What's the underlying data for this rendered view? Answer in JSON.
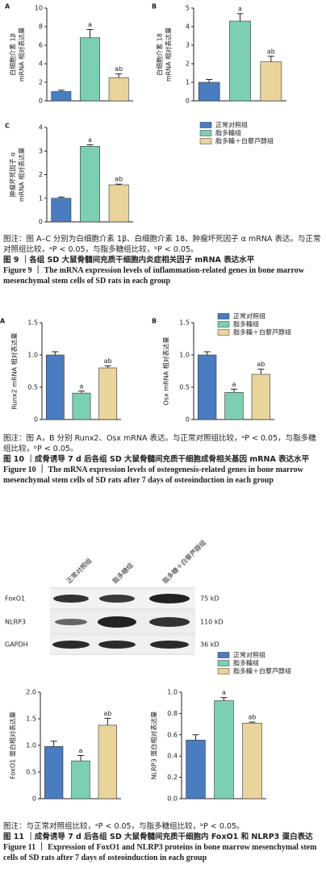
{
  "chart_data": [
    {
      "type": "bar",
      "panel": "A",
      "ylabel": [
        "白细胞介素 1β",
        "mRNA 相对表达量"
      ],
      "categories": [
        "正常对照组",
        "脂多糖组",
        "脂多糖＋白藜芦醇组"
      ],
      "colors": [
        "#4a7cc0",
        "#7dcfb3",
        "#e9d49c"
      ],
      "values": [
        1.0,
        6.8,
        2.5
      ],
      "errors": [
        0.15,
        0.9,
        0.4
      ],
      "annotations": [
        null,
        "a",
        "ab"
      ],
      "ylim": [
        0,
        10
      ],
      "yticks": [
        0,
        2,
        4,
        6,
        8,
        10
      ],
      "legend": false
    },
    {
      "type": "bar",
      "panel": "B",
      "ylabel": [
        "白细胞介素 18",
        "mRNA 相对表达量"
      ],
      "categories": [
        "正常对照组",
        "脂多糖组",
        "脂多糖＋白藜芦醇组"
      ],
      "colors": [
        "#4a7cc0",
        "#7dcfb3",
        "#e9d49c"
      ],
      "values": [
        1.0,
        4.3,
        2.1
      ],
      "errors": [
        0.15,
        0.4,
        0.3
      ],
      "annotations": [
        null,
        "a",
        "ab"
      ],
      "ylim": [
        0,
        5
      ],
      "yticks": [
        0,
        1,
        2,
        3,
        4,
        5
      ],
      "legend": false
    },
    {
      "type": "bar",
      "panel": "C",
      "ylabel": [
        "肿瘤坏死因子 α",
        "mRNA 相对表达量"
      ],
      "categories": [
        "正常对照组",
        "脂多糖组",
        "脂多糖＋白藜芦醇组"
      ],
      "colors": [
        "#4a7cc0",
        "#7dcfb3",
        "#e9d49c"
      ],
      "values": [
        1.0,
        3.2,
        1.57
      ],
      "errors": [
        0.05,
        0.07,
        0.03
      ],
      "annotations": [
        null,
        "a",
        "ab"
      ],
      "ylim": [
        0,
        4
      ],
      "yticks": [
        0,
        1,
        2,
        3,
        4
      ],
      "legend": true
    },
    {
      "type": "bar",
      "panel": "A",
      "ylabel": [
        "Runx2 mRNA 相对表达量"
      ],
      "categories": [
        "正常对照组",
        "脂多糖组",
        "脂多糖＋白藜芦醇组"
      ],
      "colors": [
        "#4a7cc0",
        "#7dcfb3",
        "#e9d49c"
      ],
      "values": [
        1.0,
        0.41,
        0.8
      ],
      "errors": [
        0.05,
        0.03,
        0.03
      ],
      "annotations": [
        null,
        "a",
        "ab"
      ],
      "ylim": [
        0,
        1.5
      ],
      "yticks": [
        0,
        0.5,
        {
          "value": 1,
          "label": "1.0"
        },
        1.5
      ],
      "legend": true
    },
    {
      "type": "bar",
      "panel": "B",
      "ylabel": [
        "Osx mRNA 相对表达量"
      ],
      "categories": [
        "正常对照组",
        "脂多糖组",
        "脂多糖＋白藜芦醇组"
      ],
      "colors": [
        "#4a7cc0",
        "#7dcfb3",
        "#e9d49c"
      ],
      "values": [
        1.0,
        0.42,
        0.7
      ],
      "errors": [
        0.05,
        0.05,
        0.08
      ],
      "annotations": [
        null,
        "a",
        "ab"
      ],
      "ylim": [
        0,
        1.5
      ],
      "yticks": [
        0,
        0.5,
        {
          "value": 1,
          "label": "1.0"
        },
        1.5
      ],
      "legend": false
    },
    {
      "type": "bar",
      "ylabel": [
        "FoxO1 蛋白相对表达量"
      ],
      "categories": [
        "正常对照组",
        "脂多糖组",
        "脂多糖＋白藜芦醇组"
      ],
      "colors": [
        "#4a7cc0",
        "#7dcfb3",
        "#e9d49c"
      ],
      "values": [
        0.98,
        0.71,
        1.38
      ],
      "errors": [
        0.1,
        0.1,
        0.13
      ],
      "annotations": [
        null,
        "a",
        "ab"
      ],
      "ylim": [
        0,
        2
      ],
      "yticks": [
        0,
        0.5,
        {
          "value": 1,
          "label": "1.0"
        },
        1.5,
        {
          "value": 2,
          "label": "2.0"
        }
      ],
      "legend": false
    },
    {
      "type": "bar",
      "ylabel": [
        "NLRP3 蛋白相对表达量"
      ],
      "categories": [
        "正常对照组",
        "脂多糖组",
        "脂多糖＋白藜芦醇组"
      ],
      "colors": [
        "#4a7cc0",
        "#7dcfb3",
        "#e9d49c"
      ],
      "values": [
        0.55,
        0.92,
        0.71
      ],
      "errors": [
        0.05,
        0.03,
        0.01
      ],
      "annotations": [
        null,
        "a",
        "ab"
      ],
      "ylim": [
        0,
        1
      ],
      "yticks": [
        {
          "value": 0,
          "label": "0.0"
        },
        0.2,
        0.4,
        0.6,
        0.8,
        {
          "value": 1,
          "label": "1.0"
        }
      ],
      "legend": true
    }
  ],
  "blot": {
    "lanes": [
      "正常对照组",
      "脂多糖组",
      "脂多糖＋白藜芦醇组"
    ],
    "rows": [
      "FoxO1",
      "NLRP3",
      "GAPDH"
    ],
    "sizes": [
      "75 kD",
      "110 kD",
      "36 kD"
    ]
  },
  "captions": [
    {
      "note": "图注：图 A–C 分别为白细胞介素 1β、白细胞介素 18、肿瘤坏死因子 α mRNA 表达。与正常对照组比较，ᵃP < 0.05，与脂多糖组比较，ᵇP < 0.05。",
      "title_cn": "图 9 ｜各组 SD 大鼠骨髓间充质干细胞内炎症相关因子 mRNA 表达水平",
      "title_en": "Figure 9 ｜ The mRNA expression levels of inflammation-related genes in bone marrow mesenchymal stem cells of SD rats in each group"
    },
    {
      "note": "图注：图 A，B 分别 Runx2、Osx mRNA 表达。与正常对照组比较，ᵃP < 0.05，与脂多糖组比较，ᵇP < 0.05。",
      "title_cn": "图 10 ｜成骨诱导 7 d 后各组 SD 大鼠骨髓间充质干细胞成骨相关基因 mRNA 表达水平",
      "title_en": "Figure 10 ｜ The mRNA expression levels of osteogenesis-related genes in bone marrow mesenchymal stem cells of SD rats after 7 days of osteoinduction in each group"
    },
    {
      "note": "图注：与正常对照组比较，ᵃP < 0.05，与脂多糖组比较，ᵇP < 0.05。",
      "title_cn": "图 11 ｜成骨诱导 7 d 后各组 SD 大鼠骨髓间充质干细胞内 FoxO1 和 NLRP3 蛋白表达",
      "title_en": "Figure 11 ｜ Expression of FoxO1 and NLRP3 proteins in bone marrow mesenchymal stem cells of SD rats after 7 days of osteoinduction in each group"
    }
  ]
}
